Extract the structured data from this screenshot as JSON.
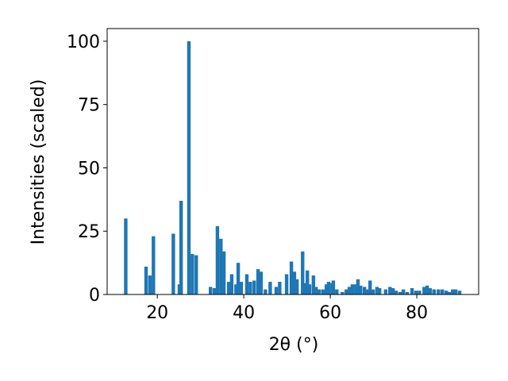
{
  "chart_data": {
    "type": "bar",
    "x_label": "2θ (°)",
    "y_label": "Intensities (scaled)",
    "color": "#1f77b4",
    "x": [
      12.7,
      17.4,
      18.3,
      19.1,
      23.7,
      25.1,
      25.5,
      27.3,
      28.1,
      29.0,
      32.3,
      33.2,
      33.9,
      34.7,
      35.4,
      36.5,
      37.2,
      38.2,
      38.7,
      39.4,
      40.7,
      41.5,
      42.4,
      43.3,
      44.0,
      45.0,
      46.1,
      47.5,
      48.3,
      49.9,
      51.0,
      51.7,
      52.3,
      53.6,
      54.0,
      54.7,
      55.2,
      56.1,
      56.7,
      57.4,
      58.3,
      59.1,
      59.6,
      60.4,
      60.7,
      61.5,
      62.8,
      63.7,
      64.4,
      65.1,
      65.9,
      66.4,
      67.0,
      67.9,
      68.6,
      69.2,
      69.9,
      70.8,
      71.4,
      72.8,
      73.8,
      74.5,
      75.2,
      76.1,
      76.9,
      77.8,
      78.9,
      79.8,
      80.6,
      81.7,
      82.4,
      83.1,
      84.0,
      85.0,
      85.9,
      86.8,
      87.5,
      88.3,
      89.0,
      89.9
    ],
    "values": [
      30,
      11,
      7.5,
      23,
      24,
      4,
      37,
      100,
      16,
      15.5,
      3,
      2.5,
      27,
      22,
      17,
      5,
      8,
      4,
      12.5,
      5,
      8,
      5,
      5.5,
      10,
      9,
      2,
      5,
      3,
      5,
      8,
      13,
      9,
      6,
      17,
      4.5,
      9.5,
      4,
      7.5,
      3,
      2,
      2,
      4,
      5,
      4.5,
      5.5,
      2,
      1,
      2,
      3,
      4,
      4,
      6,
      3.5,
      3,
      2,
      5.5,
      2,
      3,
      2.5,
      2,
      3,
      2.5,
      1.5,
      1,
      2,
      1,
      2.5,
      1.5,
      1.5,
      3,
      3.5,
      2.5,
      2,
      2,
      2,
      1.5,
      1,
      2,
      2,
      1.5
    ],
    "xlim": [
      8.4,
      94.3
    ],
    "ylim": [
      0,
      105
    ],
    "xticks": [
      20,
      40,
      60,
      80
    ],
    "yticks": [
      0,
      25,
      50,
      75,
      100
    ]
  }
}
